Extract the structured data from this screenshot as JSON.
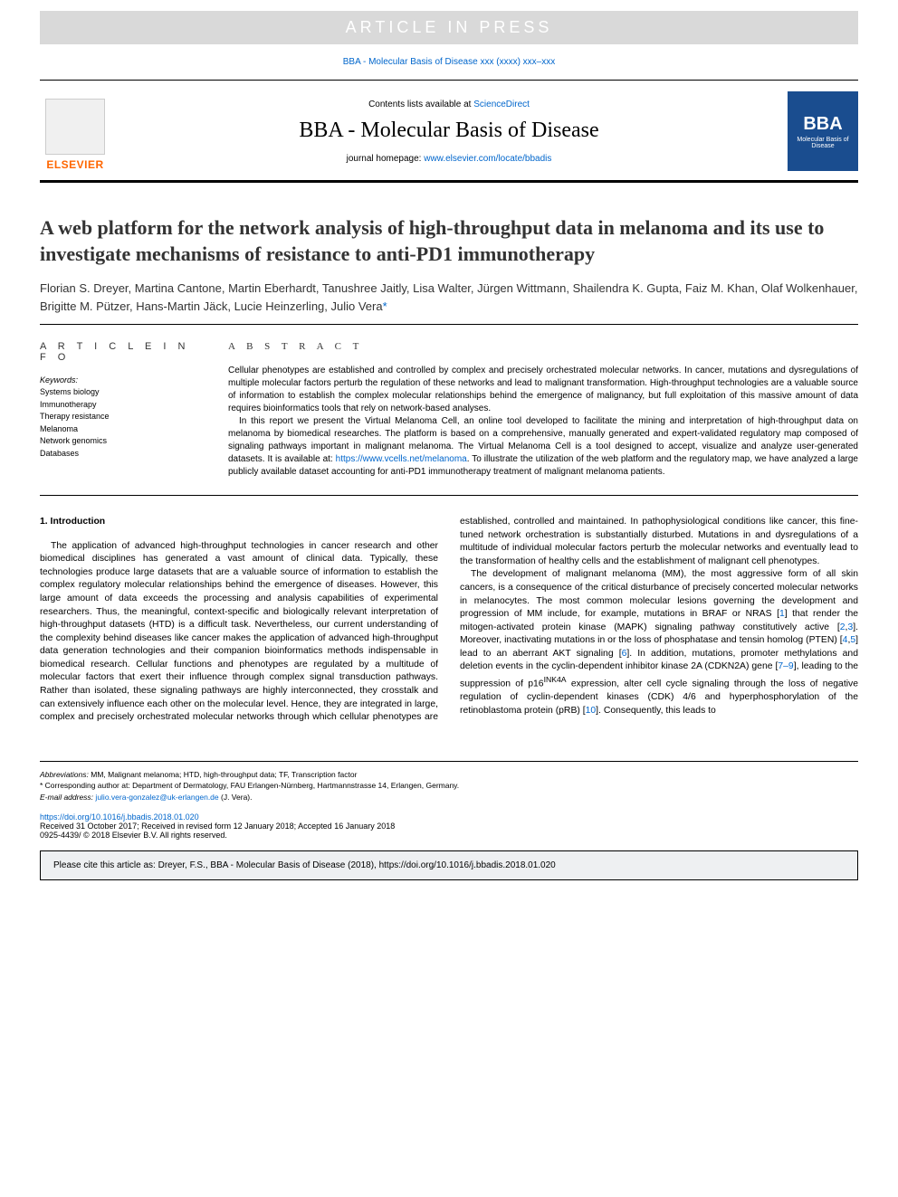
{
  "watermark": "ARTICLE IN PRESS",
  "journal_ref": "BBA - Molecular Basis of Disease xxx (xxxx) xxx–xxx",
  "header": {
    "contents_prefix": "Contents lists available at ",
    "contents_link": "ScienceDirect",
    "journal_name": "BBA - Molecular Basis of Disease",
    "homepage_prefix": "journal homepage: ",
    "homepage_url": "www.elsevier.com/locate/bbadis",
    "elsevier_text": "ELSEVIER",
    "bba_title": "BBA",
    "bba_sub": "Molecular Basis of Disease"
  },
  "title": "A web platform for the network analysis of high-throughput data in melanoma and its use to investigate mechanisms of resistance to anti-PD1 immunotherapy",
  "authors": "Florian S. Dreyer, Martina Cantone, Martin Eberhardt, Tanushree Jaitly, Lisa Walter, Jürgen Wittmann, Shailendra K. Gupta, Faiz M. Khan, Olaf Wolkenhauer, Brigitte M. Pützer, Hans-Martin Jäck, Lucie Heinzerling, Julio Vera",
  "corr_marker": "*",
  "info_label": "A R T I C L E  I N F O",
  "abstract_label": "A B S T R A C T",
  "keywords_label": "Keywords:",
  "keywords": [
    "Systems biology",
    "Immunotherapy",
    "Therapy resistance",
    "Melanoma",
    "Network genomics",
    "Databases"
  ],
  "abstract_p1": "Cellular phenotypes are established and controlled by complex and precisely orchestrated molecular networks. In cancer, mutations and dysregulations of multiple molecular factors perturb the regulation of these networks and lead to malignant transformation. High-throughput technologies are a valuable source of information to establish the complex molecular relationships behind the emergence of malignancy, but full exploitation of this massive amount of data requires bioinformatics tools that rely on network-based analyses.",
  "abstract_p2a": "In this report we present the Virtual Melanoma Cell, an online tool developed to facilitate the mining and interpretation of high-throughput data on melanoma by biomedical researches. The platform is based on a comprehensive, manually generated and expert-validated regulatory map composed of signaling pathways important in malignant melanoma. The Virtual Melanoma Cell is a tool designed to accept, visualize and analyze user-generated datasets. It is available at: ",
  "abstract_link": "https://www.vcells.net/melanoma",
  "abstract_p2b": ". To illustrate the utilization of the web platform and the regulatory map, we have analyzed a large publicly available dataset accounting for anti-PD1 immunotherapy treatment of malignant melanoma patients.",
  "section1_heading": "1. Introduction",
  "body_p1": "The application of advanced high-throughput technologies in cancer research and other biomedical disciplines has generated a vast amount of clinical data. Typically, these technologies produce large datasets that are a valuable source of information to establish the complex regulatory molecular relationships behind the emergence of diseases. However, this large amount of data exceeds the processing and analysis capabilities of experimental researchers. Thus, the meaningful, context-specific and biologically relevant interpretation of high-throughput datasets (HTD) is a difficult task. Nevertheless, our current understanding of the complexity behind diseases like cancer makes the application of advanced high-throughput data generation technologies and their companion bioinformatics methods indispensable in biomedical research. Cellular functions and phenotypes are regulated by a multitude of molecular factors that exert their influence through complex signal transduction pathways. Rather than isolated, these signaling pathways are highly interconnected, they crosstalk and can extensively influence each other on the molecular level. Hence, they are integrated in large, complex and precisely orchestrated molecular networks through which cellular phenotypes are established, controlled and maintained. In pathophysiological conditions like cancer, this fine-tuned network orchestration is substantially disturbed. Mutations in and dysregulations of a multitude of individual molecular factors perturb the molecular networks and eventually lead to the transformation of healthy cells and the establishment of malignant cell phenotypes.",
  "body_p2a": "The development of malignant melanoma (MM), the most aggressive form of all skin cancers, is a consequence of the critical disturbance of precisely concerted molecular networks in melanocytes. The most common molecular lesions governing the development and progression of MM include, for example, mutations in BRAF or NRAS [",
  "ref1": "1",
  "body_p2b": "] that render the mitogen-activated protein kinase (MAPK) signaling pathway constitutively active [",
  "ref2": "2",
  "ref3": "3",
  "body_p2c": "]. Moreover, inactivating mutations in or the loss of phosphatase and tensin homolog (PTEN) [",
  "ref4": "4",
  "ref5": "5",
  "body_p2d": "] lead to an aberrant AKT signaling [",
  "ref6": "6",
  "body_p2e": "]. In addition, mutations, promoter methylations and deletion events in the cyclin-dependent inhibitor kinase 2A (CDKN2A) gene [",
  "ref7_9": "7–9",
  "body_p2f": "], leading to the suppression of p16",
  "ink4a": "INK4A",
  "body_p2g": " expression, alter cell cycle signaling through the loss of negative regulation of cyclin-dependent kinases (CDK) 4/6 and hyperphosphorylation of the retinoblastoma protein (pRB) [",
  "ref10": "10",
  "body_p2h": "]. Consequently, this leads to",
  "footer": {
    "abbrev_label": "Abbreviations:",
    "abbrev_text": " MM, Malignant melanoma; HTD, high-throughput data; TF, Transcription factor",
    "corr_label": "* Corresponding author at:",
    "corr_text": " Department of Dermatology, FAU Erlangen-Nürnberg, Hartmannstrasse 14, Erlangen, Germany.",
    "email_label": "E-mail address:",
    "email": " julio.vera-gonzalez@uk-erlangen.de",
    "email_suffix": " (J. Vera)."
  },
  "doi": "https://doi.org/10.1016/j.bbadis.2018.01.020",
  "history": "Received 31 October 2017; Received in revised form 12 January 2018; Accepted 16 January 2018",
  "issn": "0925-4439/ © 2018 Elsevier B.V. All rights reserved.",
  "cite": "Please cite this article as: Dreyer, F.S., BBA - Molecular Basis of Disease (2018), https://doi.org/10.1016/j.bbadis.2018.01.020",
  "colors": {
    "link": "#0066cc",
    "elsevier_orange": "#ff6600",
    "bba_blue": "#1a4d8f",
    "watermark_bg": "#d9d9d9",
    "cite_bg": "#eef0f2"
  }
}
